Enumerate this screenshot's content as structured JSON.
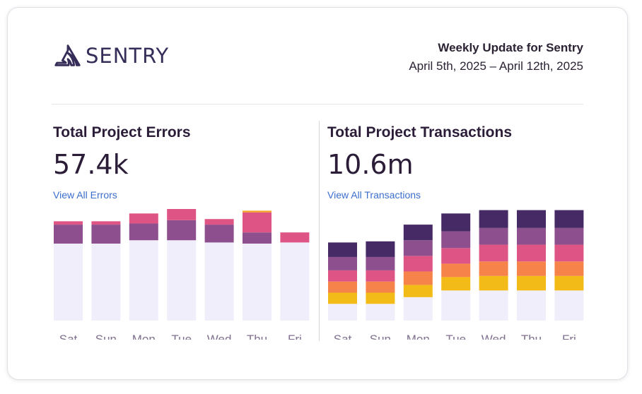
{
  "header": {
    "brand": "SENTRY",
    "title": "Weekly Update for Sentry",
    "date_range": "April 5th, 2025 – April 12th, 2025"
  },
  "colors": {
    "background": "#F0EEFA",
    "s1": "#8E4F8E",
    "s2": "#DE5585",
    "s3": "#F4A424",
    "t1": "#452A66",
    "t2": "#8E4F8E",
    "t3": "#DE5585",
    "t4": "#F6844A",
    "t5": "#F3BB17"
  },
  "errors": {
    "title": "Total Project Errors",
    "value": "57.4k",
    "link": "View All Errors"
  },
  "transactions": {
    "title": "Total Project Transactions",
    "value": "10.6m",
    "link": "View All Transactions"
  },
  "chart_data": [
    {
      "type": "bar",
      "title": "Total Project Errors",
      "categories": [
        "Sat",
        "Sun",
        "Mon",
        "Tue",
        "Wed",
        "Thu",
        "Fri"
      ],
      "max": 100,
      "series": [
        {
          "name": "background",
          "values": [
            69,
            69,
            72,
            72,
            70,
            69,
            70
          ]
        },
        {
          "name": "segment-purple",
          "values": [
            17,
            17,
            15,
            18,
            16,
            10,
            0
          ]
        },
        {
          "name": "segment-pink",
          "values": [
            3,
            3,
            9,
            12,
            5,
            18,
            9
          ]
        },
        {
          "name": "segment-orange",
          "values": [
            0,
            0,
            0,
            0,
            0,
            1.5,
            0
          ]
        }
      ]
    },
    {
      "type": "bar",
      "title": "Total Project Transactions",
      "categories": [
        "Sat",
        "Sun",
        "Mon",
        "Tue",
        "Wed",
        "Thu",
        "Fri"
      ],
      "max": 100,
      "series": [
        {
          "name": "background",
          "values": [
            15,
            15,
            21,
            27,
            27,
            27,
            27
          ]
        },
        {
          "name": "segment-yellow",
          "values": [
            10,
            10,
            11,
            12,
            13,
            13,
            13
          ]
        },
        {
          "name": "segment-orange",
          "values": [
            10,
            10,
            12,
            12,
            13,
            13,
            13
          ]
        },
        {
          "name": "segment-pink",
          "values": [
            10,
            10,
            14,
            14,
            15,
            15,
            15
          ]
        },
        {
          "name": "segment-purple",
          "values": [
            12,
            12,
            14,
            15,
            15,
            15,
            15
          ]
        },
        {
          "name": "segment-dark",
          "values": [
            13,
            14,
            14,
            16,
            16,
            16,
            16
          ]
        }
      ]
    }
  ]
}
